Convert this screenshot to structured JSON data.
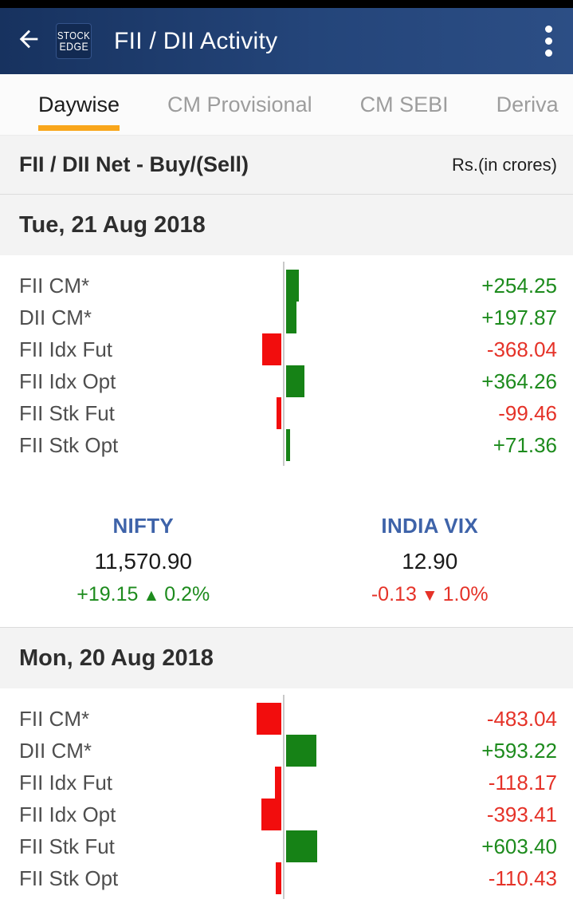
{
  "header": {
    "title": "FII / DII Activity",
    "logo_line1": "STOCK",
    "logo_line2": "EDGE"
  },
  "tabs": [
    {
      "label": "Daywise",
      "active": true
    },
    {
      "label": "CM Provisional",
      "active": false
    },
    {
      "label": "CM SEBI",
      "active": false
    },
    {
      "label": "Deriva",
      "active": false
    }
  ],
  "subheader": {
    "title": "FII / DII Net - Buy/(Sell)",
    "unit": "Rs.(in crores)"
  },
  "colors": {
    "positive_text": "#1d8b1d",
    "negative_text": "#e53228",
    "positive_bar": "#168216",
    "negative_bar": "#f20d0d",
    "tab_accent": "#f9a61b",
    "index_name": "#3e63a9"
  },
  "days": [
    {
      "date": "Tue, 21 Aug 2018",
      "rows": [
        {
          "label": "FII CM*",
          "display": "+254.25",
          "num": 254.25
        },
        {
          "label": "DII CM*",
          "display": "+197.87",
          "num": 197.87
        },
        {
          "label": "FII Idx Fut",
          "display": "-368.04",
          "num": -368.04
        },
        {
          "label": "FII Idx Opt",
          "display": "+364.26",
          "num": 364.26
        },
        {
          "label": "FII Stk Fut",
          "display": "-99.46",
          "num": -99.46
        },
        {
          "label": "FII Stk Opt",
          "display": "+71.36",
          "num": 71.36
        }
      ],
      "indices": [
        {
          "name": "NIFTY",
          "value": "11,570.90",
          "change": "+19.15",
          "arrow": "▲",
          "pct": "0.2%",
          "direction": "up"
        },
        {
          "name": "INDIA VIX",
          "value": "12.90",
          "change": "-0.13",
          "arrow": "▼",
          "pct": "1.0%",
          "direction": "down"
        }
      ]
    },
    {
      "date": "Mon, 20 Aug 2018",
      "rows": [
        {
          "label": "FII CM*",
          "display": "-483.04",
          "num": -483.04
        },
        {
          "label": "DII CM*",
          "display": "+593.22",
          "num": 593.22
        },
        {
          "label": "FII Idx Fut",
          "display": "-118.17",
          "num": -118.17
        },
        {
          "label": "FII Idx Opt",
          "display": "-393.41",
          "num": -393.41
        },
        {
          "label": "FII Stk Fut",
          "display": "+603.40",
          "num": 603.4
        },
        {
          "label": "FII Stk Opt",
          "display": "-110.43",
          "num": -110.43
        }
      ],
      "indices": null
    }
  ],
  "chart_data": [
    {
      "type": "bar",
      "title": "Tue, 21 Aug 2018",
      "orientation": "horizontal",
      "categories": [
        "FII CM*",
        "DII CM*",
        "FII Idx Fut",
        "FII Idx Opt",
        "FII Stk Fut",
        "FII Stk Opt"
      ],
      "values": [
        254.25,
        197.87,
        -368.04,
        364.26,
        -99.46,
        71.36
      ],
      "xlabel": "",
      "ylabel": "Rs.(in crores)",
      "xlim": [
        -650,
        650
      ],
      "grid": false,
      "legend": "none"
    },
    {
      "type": "bar",
      "title": "Mon, 20 Aug 2018",
      "orientation": "horizontal",
      "categories": [
        "FII CM*",
        "DII CM*",
        "FII Idx Fut",
        "FII Idx Opt",
        "FII Stk Fut",
        "FII Stk Opt"
      ],
      "values": [
        -483.04,
        593.22,
        -118.17,
        -393.41,
        603.4,
        -110.43
      ],
      "xlabel": "",
      "ylabel": "Rs.(in crores)",
      "xlim": [
        -650,
        650
      ],
      "grid": false,
      "legend": "none"
    }
  ]
}
